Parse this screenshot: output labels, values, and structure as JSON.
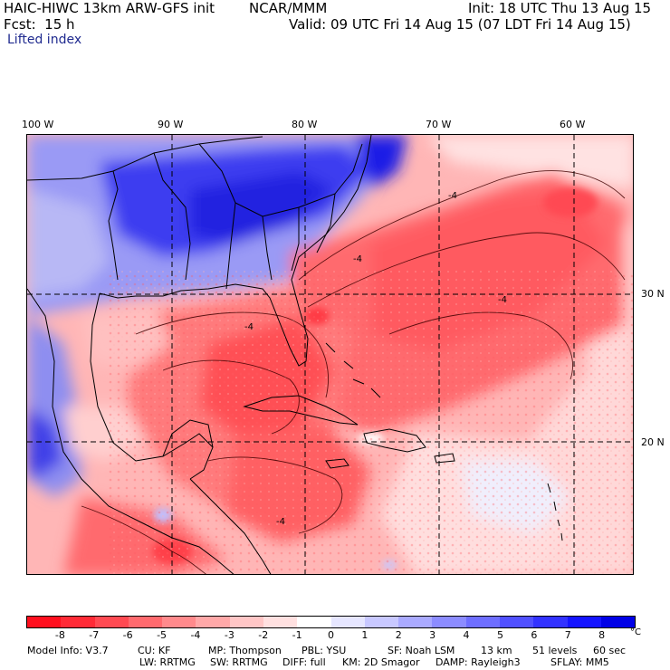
{
  "header": {
    "model_line": "HAIC-HIWC 13km ARW-GFS init",
    "org": "NCAR/MMM",
    "init": "Init: 18 UTC Thu 13 Aug 15",
    "fcst": "Fcst:  15 h",
    "valid": "Valid: 09 UTC Fri 14 Aug 15 (07 LDT Fri 14 Aug 15)",
    "field": "Lifted index"
  },
  "map": {
    "lon_labels": [
      "100 W",
      "90 W",
      "80 W",
      "70 W",
      "60 W"
    ],
    "lat_labels": [
      "30 N",
      "20 N"
    ],
    "contour_labels": [
      "-4",
      "-4",
      "-4",
      "-4",
      "-4"
    ]
  },
  "colorbar": {
    "ticks": [
      "-8",
      "-7",
      "-6",
      "-5",
      "-4",
      "-3",
      "-2",
      "-1",
      "0",
      "1",
      "2",
      "3",
      "4",
      "5",
      "6",
      "7",
      "8"
    ],
    "unit": "°C",
    "colors": [
      "#ff0f1e",
      "#ff2a36",
      "#ff4a52",
      "#ff6a6e",
      "#ff8a8c",
      "#ffa8a8",
      "#ffc6c6",
      "#ffe0e0",
      "#ffffff",
      "#e6e6ff",
      "#c8c8ff",
      "#aaaaff",
      "#8c8cff",
      "#6e6eff",
      "#5050ff",
      "#3232ff",
      "#1414ff",
      "#0000e6"
    ]
  },
  "footer": {
    "line1": [
      "Model Info: V3.7",
      "CU: KF",
      "MP: Thompson",
      "PBL: YSU",
      "SF: Noah LSM",
      "13 km",
      "51 levels",
      "60 sec"
    ],
    "line2": [
      "LW: RRTMG",
      "SW: RRTMG",
      "DIFF: full",
      "KM: 2D Smagor",
      "DAMP: Rayleigh3",
      "SFLAY: MM5"
    ]
  }
}
